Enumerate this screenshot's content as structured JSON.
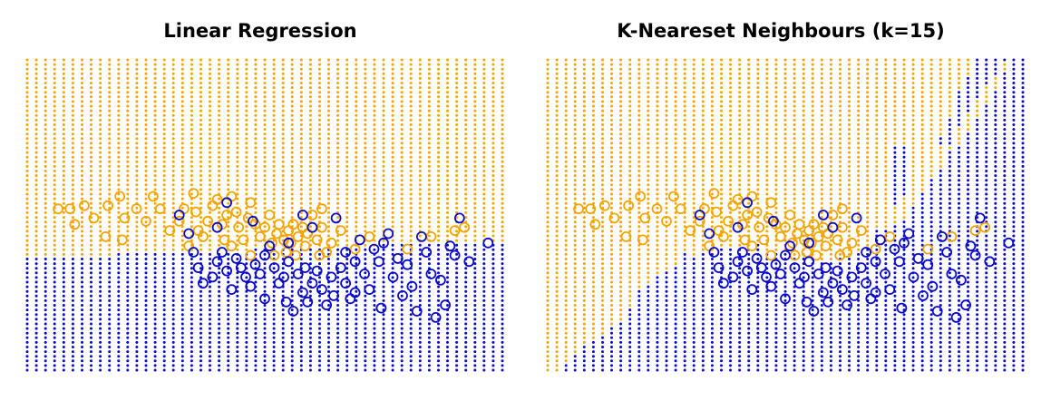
{
  "colors": {
    "orange": "#f2a500",
    "blue": "#0a0ac8",
    "background": "#ffffff"
  },
  "chart_data": [
    {
      "type": "scatter",
      "title": "Linear Regression",
      "xlim": [
        0,
        1
      ],
      "ylim": [
        0,
        1
      ],
      "axes_visible": false,
      "legend": "none",
      "grid_layers": [
        {
          "class": "orange",
          "region": "above linear boundary",
          "boundary": {
            "type": "line",
            "y_at_x0": 0.363,
            "y_at_x1": 0.417
          }
        },
        {
          "class": "blue",
          "region": "below linear boundary"
        }
      ],
      "grid_resolution": {
        "columns": 53,
        "rows": 68
      },
      "series_names": [
        "orange",
        "blue"
      ],
      "series": [
        {
          "name": "orange",
          "marker": "open-circle",
          "points": [
            [
              0.065,
              0.52
            ],
            [
              0.09,
              0.52
            ],
            [
              0.12,
              0.53
            ],
            [
              0.14,
              0.49
            ],
            [
              0.165,
              0.43
            ],
            [
              0.17,
              0.53
            ],
            [
              0.195,
              0.56
            ],
            [
              0.205,
              0.49
            ],
            [
              0.23,
              0.52
            ],
            [
              0.25,
              0.48
            ],
            [
              0.265,
              0.56
            ],
            [
              0.28,
              0.52
            ],
            [
              0.3,
              0.45
            ],
            [
              0.32,
              0.48
            ],
            [
              0.33,
              0.52
            ],
            [
              0.35,
              0.57
            ],
            [
              0.355,
              0.51
            ],
            [
              0.36,
              0.45
            ],
            [
              0.37,
              0.43
            ],
            [
              0.38,
              0.48
            ],
            [
              0.39,
              0.53
            ],
            [
              0.4,
              0.55
            ],
            [
              0.41,
              0.47
            ],
            [
              0.415,
              0.42
            ],
            [
              0.42,
              0.5
            ],
            [
              0.43,
              0.56
            ],
            [
              0.44,
              0.51
            ],
            [
              0.445,
              0.46
            ],
            [
              0.455,
              0.42
            ],
            [
              0.465,
              0.49
            ],
            [
              0.47,
              0.54
            ],
            [
              0.48,
              0.47
            ],
            [
              0.49,
              0.43
            ],
            [
              0.5,
              0.46
            ],
            [
              0.51,
              0.5
            ],
            [
              0.515,
              0.41
            ],
            [
              0.52,
              0.37
            ],
            [
              0.525,
              0.44
            ],
            [
              0.53,
              0.47
            ],
            [
              0.54,
              0.42
            ],
            [
              0.545,
              0.38
            ],
            [
              0.55,
              0.45
            ],
            [
              0.555,
              0.41
            ],
            [
              0.56,
              0.47
            ],
            [
              0.565,
              0.37
            ],
            [
              0.57,
              0.43
            ],
            [
              0.58,
              0.46
            ],
            [
              0.585,
              0.4
            ],
            [
              0.59,
              0.44
            ],
            [
              0.6,
              0.5
            ],
            [
              0.61,
              0.42
            ],
            [
              0.615,
              0.37
            ],
            [
              0.62,
              0.46
            ],
            [
              0.63,
              0.38
            ],
            [
              0.64,
              0.41
            ],
            [
              0.66,
              0.45
            ],
            [
              0.69,
              0.39
            ],
            [
              0.72,
              0.43
            ],
            [
              0.78,
              0.36
            ],
            [
              0.8,
              0.39
            ],
            [
              0.85,
              0.43
            ],
            [
              0.9,
              0.45
            ],
            [
              0.92,
              0.46
            ],
            [
              0.62,
              0.52
            ],
            [
              0.1,
              0.47
            ],
            [
              0.2,
              0.42
            ],
            [
              0.34,
              0.4
            ],
            [
              0.47,
              0.37
            ],
            [
              0.43,
              0.4
            ]
          ]
        },
        {
          "name": "blue",
          "marker": "open-circle",
          "points": [
            [
              0.32,
              0.5
            ],
            [
              0.34,
              0.44
            ],
            [
              0.35,
              0.38
            ],
            [
              0.36,
              0.33
            ],
            [
              0.37,
              0.28
            ],
            [
              0.39,
              0.3
            ],
            [
              0.4,
              0.35
            ],
            [
              0.41,
              0.38
            ],
            [
              0.42,
              0.32
            ],
            [
              0.42,
              0.54
            ],
            [
              0.43,
              0.26
            ],
            [
              0.44,
              0.36
            ],
            [
              0.45,
              0.33
            ],
            [
              0.46,
              0.3
            ],
            [
              0.47,
              0.27
            ],
            [
              0.48,
              0.34
            ],
            [
              0.49,
              0.31
            ],
            [
              0.5,
              0.23
            ],
            [
              0.5,
              0.37
            ],
            [
              0.51,
              0.4
            ],
            [
              0.52,
              0.33
            ],
            [
              0.53,
              0.28
            ],
            [
              0.54,
              0.3
            ],
            [
              0.545,
              0.22
            ],
            [
              0.55,
              0.35
            ],
            [
              0.56,
              0.19
            ],
            [
              0.57,
              0.31
            ],
            [
              0.58,
              0.25
            ],
            [
              0.585,
              0.33
            ],
            [
              0.59,
              0.22
            ],
            [
              0.6,
              0.28
            ],
            [
              0.61,
              0.32
            ],
            [
              0.62,
              0.26
            ],
            [
              0.63,
              0.21
            ],
            [
              0.64,
              0.3
            ],
            [
              0.645,
              0.24
            ],
            [
              0.65,
              0.49
            ],
            [
              0.66,
              0.33
            ],
            [
              0.67,
              0.28
            ],
            [
              0.68,
              0.23
            ],
            [
              0.69,
              0.35
            ],
            [
              0.7,
              0.42
            ],
            [
              0.71,
              0.31
            ],
            [
              0.72,
              0.26
            ],
            [
              0.73,
              0.39
            ],
            [
              0.74,
              0.35
            ],
            [
              0.75,
              0.41
            ],
            [
              0.76,
              0.44
            ],
            [
              0.77,
              0.3
            ],
            [
              0.78,
              0.36
            ],
            [
              0.79,
              0.24
            ],
            [
              0.8,
              0.34
            ],
            [
              0.81,
              0.27
            ],
            [
              0.82,
              0.19
            ],
            [
              0.83,
              0.43
            ],
            [
              0.84,
              0.38
            ],
            [
              0.85,
              0.31
            ],
            [
              0.86,
              0.17
            ],
            [
              0.87,
              0.29
            ],
            [
              0.88,
              0.21
            ],
            [
              0.89,
              0.4
            ],
            [
              0.9,
              0.37
            ],
            [
              0.91,
              0.49
            ],
            [
              0.93,
              0.35
            ],
            [
              0.97,
              0.41
            ],
            [
              0.475,
              0.48
            ],
            [
              0.55,
              0.41
            ],
            [
              0.6,
              0.46
            ],
            [
              0.4,
              0.46
            ],
            [
              0.67,
              0.38
            ],
            [
              0.745,
              0.2
            ],
            [
              0.69,
              0.25
            ],
            [
              0.58,
              0.5
            ]
          ]
        }
      ]
    },
    {
      "type": "scatter",
      "title": "K-Neareset Neighbours (k=15)",
      "xlim": [
        0,
        1
      ],
      "ylim": [
        0,
        1
      ],
      "axes_visible": false,
      "legend": "none",
      "grid_layers": [
        {
          "class": "orange",
          "region": "kNN majority orange"
        },
        {
          "class": "blue",
          "region": "kNN majority blue"
        }
      ],
      "grid_resolution": {
        "columns": 53,
        "rows": 68
      },
      "series_names": [
        "orange",
        "blue"
      ],
      "series": [
        {
          "name": "orange",
          "marker": "open-circle",
          "points": "same as Linear Regression panel"
        },
        {
          "name": "blue",
          "marker": "open-circle",
          "points": "same as Linear Regression panel"
        }
      ]
    }
  ]
}
